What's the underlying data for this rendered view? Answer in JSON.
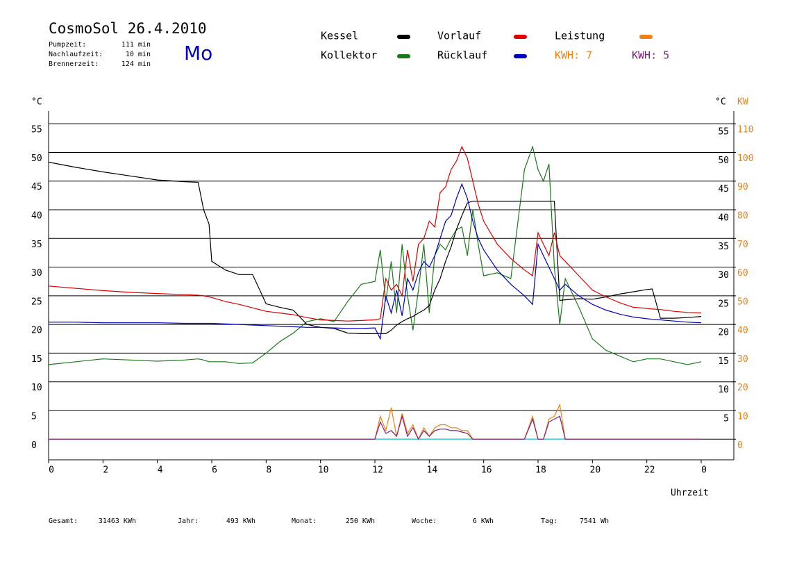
{
  "chart_data": {
    "type": "line",
    "title": "CosmoSol 26.4.2010",
    "info": [
      {
        "label": "Pumpzeit:",
        "value": "111 min"
      },
      {
        "label": "Nachlaufzeit:",
        "value": "10 min"
      },
      {
        "label": "Brennerzeit:",
        "value": "124 min"
      }
    ],
    "weekday": "Mo",
    "kwh_labels": [
      {
        "text": "KWH: 7",
        "color": "#f08010"
      },
      {
        "text": "KWH: 5",
        "color": "#802080"
      }
    ],
    "y_label": "°C",
    "y_right_label": "°C",
    "y2_label": "KW",
    "x_label": "Uhrzeit",
    "footer": [
      {
        "label": "Gesamt:",
        "value": "31463 KWh"
      },
      {
        "label": "Jahr:",
        "value": "493 KWh"
      },
      {
        "label": "Monat:",
        "value": "250 KWh"
      },
      {
        "label": "Woche:",
        "value": "6 KWh"
      },
      {
        "label": "Tag:",
        "value": "7541 Wh"
      }
    ],
    "xlim": [
      0,
      25.2
    ],
    "xticks": [
      0,
      2,
      4,
      6,
      8,
      10,
      12,
      14,
      16,
      18,
      20,
      22,
      {
        "value": 24,
        "label": "0"
      }
    ],
    "ylim": [
      -3.6,
      57.2
    ],
    "yticks": [
      0,
      5,
      10,
      15,
      20,
      25,
      30,
      35,
      40,
      45,
      50,
      55
    ],
    "y_right_ticks": [
      5,
      10,
      15,
      20,
      25,
      30,
      35,
      40,
      45,
      50,
      55
    ],
    "y2lim": [
      -7.2,
      114.4
    ],
    "y2ticks": [
      0,
      10,
      20,
      30,
      40,
      50,
      60,
      70,
      80,
      90,
      100,
      110
    ],
    "grid": true,
    "x": [
      0,
      1,
      2,
      3,
      4,
      5,
      5.5,
      5.7,
      5.9,
      6,
      6.5,
      7,
      7.5,
      8,
      8.5,
      9,
      9.5,
      10,
      10.5,
      11,
      11.5,
      12,
      12.2,
      12.4,
      12.6,
      12.8,
      13,
      13.2,
      13.4,
      13.6,
      13.8,
      14,
      14.2,
      14.4,
      14.6,
      14.8,
      15,
      15.2,
      15.4,
      15.6,
      15.8,
      16,
      16.5,
      17,
      17.5,
      17.8,
      18,
      18.2,
      18.4,
      18.6,
      18.8,
      19,
      19.5,
      20,
      20.5,
      21,
      21.5,
      22,
      22.2,
      22.5,
      23,
      23.5,
      24
    ],
    "series": [
      {
        "name": "Kessel",
        "color": "#000000",
        "values": [
          48.3,
          47.4,
          46.6,
          45.9,
          45.2,
          44.9,
          44.8,
          40,
          37.5,
          31,
          29.5,
          28.7,
          28.7,
          23.6,
          23,
          22.5,
          20,
          19.5,
          19.3,
          18.5,
          18.4,
          18.4,
          18.4,
          18.4,
          19,
          19.9,
          20.5,
          21,
          21.4,
          22,
          22.5,
          23.3,
          26,
          28,
          31,
          33.5,
          36.6,
          39,
          41.2,
          41.5,
          41.5,
          41.5,
          41.5,
          41.5,
          41.5,
          41.5,
          41.5,
          41.5,
          41.5,
          41.5,
          24.2,
          24.3,
          24.5,
          24.4,
          24.8,
          25.3,
          25.7,
          26.1,
          26.2,
          21.1,
          21.1,
          21.2,
          21.4
        ]
      },
      {
        "name": "Kollektor",
        "color": "#1a7a1a",
        "values": [
          13,
          13.5,
          14,
          13.8,
          13.6,
          13.8,
          14,
          13.8,
          13.5,
          13.5,
          13.5,
          13.2,
          13.3,
          15,
          17,
          18.5,
          20.5,
          21,
          20.5,
          24,
          27,
          27.5,
          33,
          24,
          31,
          22,
          34,
          25,
          19,
          26,
          34,
          22,
          32,
          34,
          33,
          35,
          36.5,
          37,
          32,
          40,
          34,
          28.5,
          29,
          28,
          47,
          51,
          47,
          45,
          48,
          30,
          20,
          28,
          23,
          17.5,
          15.5,
          14.5,
          13.5,
          14,
          14,
          14,
          13.5,
          13,
          13.5
        ]
      },
      {
        "name": "Vorlauf",
        "color": "#e00000",
        "values": [
          26.7,
          26.3,
          25.9,
          25.6,
          25.4,
          25.2,
          25.1,
          25,
          24.8,
          24.7,
          24,
          23.5,
          22.9,
          22.3,
          22,
          21.7,
          21.2,
          20.8,
          20.7,
          20.6,
          20.7,
          20.8,
          21,
          28,
          26,
          27,
          25,
          33,
          27.5,
          34,
          35,
          38,
          37,
          43,
          44,
          47,
          48.5,
          51,
          49,
          45,
          41,
          38,
          34,
          31.5,
          29.5,
          28.5,
          36,
          34,
          32,
          36,
          32,
          31,
          28.5,
          26,
          24.8,
          23.8,
          23,
          22.8,
          22.7,
          22.6,
          22.3,
          22.1,
          22
        ]
      },
      {
        "name": "Rücklauf",
        "color": "#0000c0",
        "values": [
          20.4,
          20.4,
          20.3,
          20.3,
          20.3,
          20.2,
          20.2,
          20.2,
          20.2,
          20.2,
          20.1,
          20,
          19.9,
          19.8,
          19.7,
          19.6,
          19.5,
          19.5,
          19.4,
          19.3,
          19.3,
          19.4,
          17.5,
          25,
          22,
          26,
          21.5,
          28,
          26,
          29,
          31,
          30,
          32,
          35,
          38,
          39,
          42,
          44.5,
          42,
          38,
          35,
          33,
          29.5,
          27,
          25,
          23.5,
          34,
          32,
          30,
          28,
          26,
          27,
          25,
          23.5,
          22.5,
          21.8,
          21.3,
          21,
          20.9,
          20.8,
          20.6,
          20.4,
          20.3
        ]
      },
      {
        "name": "Leistung",
        "color": "#f08010",
        "axis": "y2",
        "values": [
          0,
          0,
          0,
          0,
          0,
          0,
          0,
          0,
          0,
          0,
          0,
          0,
          0,
          0,
          0,
          0,
          0,
          0,
          0,
          0,
          0,
          0,
          8,
          3,
          11,
          1,
          9,
          2,
          5,
          0,
          4,
          1,
          4,
          5,
          5,
          4,
          4,
          3,
          3,
          0,
          0,
          0,
          0,
          0,
          0,
          8,
          0,
          0,
          7,
          8,
          12,
          0,
          0,
          0,
          0,
          0,
          0,
          0,
          0,
          0,
          0,
          0,
          0
        ]
      },
      {
        "color": "#802080",
        "axis": "y2",
        "values": [
          0,
          0,
          0,
          0,
          0,
          0,
          0,
          0,
          0,
          0,
          0,
          0,
          0,
          0,
          0,
          0,
          0,
          0,
          0,
          0,
          0,
          0,
          6,
          2,
          3,
          1,
          8,
          1,
          4,
          0,
          3,
          1,
          3,
          3.5,
          3.5,
          3,
          3,
          2.5,
          2,
          0,
          0,
          0,
          0,
          0,
          0,
          7,
          0,
          0,
          6,
          7,
          8,
          0,
          0,
          0,
          0,
          0,
          0,
          0,
          0,
          0,
          0,
          0,
          0
        ]
      },
      {
        "color": "#40d8e0",
        "x": [
          0,
          24
        ],
        "values": [
          0,
          0
        ]
      }
    ]
  }
}
